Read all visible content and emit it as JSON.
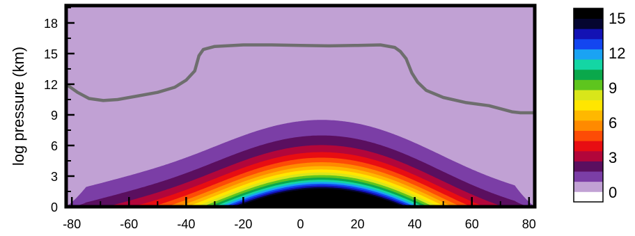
{
  "chart_data": {
    "type": "filled-contour",
    "ylabel": "log pressure (km)",
    "xlabel": "",
    "xlim": [
      -82,
      82
    ],
    "ylim": [
      0,
      19.7
    ],
    "x_ticks": [
      -80,
      -60,
      -40,
      -20,
      0,
      20,
      40,
      60,
      80
    ],
    "x_tick_labels": [
      "-80",
      "-60",
      "-40",
      "-20",
      "0",
      "20",
      "40",
      "60",
      "80"
    ],
    "y_ticks": [
      0,
      3,
      6,
      9,
      12,
      15,
      18
    ],
    "y_tick_labels": [
      "0",
      "3",
      "6",
      "9",
      "12",
      "15",
      "18"
    ],
    "contour_levels": [
      0,
      1,
      2,
      3,
      4,
      5,
      6,
      7,
      8,
      9,
      10,
      11,
      12,
      13,
      14,
      15
    ],
    "colorbar_tick_labels": [
      "15",
      "12",
      "9",
      "6",
      "3",
      "0"
    ],
    "colorbar_colors": [
      "#ffffff",
      "#c1a1d4",
      "#7b3ea6",
      "#5a0f5f",
      "#b2063a",
      "#e80d12",
      "#fd4c06",
      "#ff8a00",
      "#ffb800",
      "#ffe600",
      "#d9e61a",
      "#5ec51e",
      "#0aa84b",
      "#14d6a4",
      "#1aa3f3",
      "#1346f0",
      "#1312b4",
      "#050530",
      "#000000"
    ],
    "background_level": 0,
    "outline_curve": {
      "color": "#6e6e6e",
      "points": [
        [
          -82,
          12.0
        ],
        [
          -78,
          11.2
        ],
        [
          -74,
          10.6
        ],
        [
          -69,
          10.4
        ],
        [
          -64,
          10.5
        ],
        [
          -58,
          10.8
        ],
        [
          -50,
          11.2
        ],
        [
          -44,
          11.7
        ],
        [
          -40,
          12.4
        ],
        [
          -37,
          13.3
        ],
        [
          -35.5,
          14.8
        ],
        [
          -34,
          15.4
        ],
        [
          -30,
          15.7
        ],
        [
          -20,
          15.85
        ],
        [
          -10,
          15.85
        ],
        [
          0,
          15.8
        ],
        [
          10,
          15.75
        ],
        [
          20,
          15.8
        ],
        [
          28,
          15.85
        ],
        [
          33,
          15.6
        ],
        [
          35,
          15.2
        ],
        [
          37,
          14.5
        ],
        [
          39,
          13.1
        ],
        [
          41,
          12.2
        ],
        [
          44,
          11.4
        ],
        [
          50,
          10.7
        ],
        [
          58,
          10.2
        ],
        [
          66,
          9.9
        ],
        [
          70,
          9.6
        ],
        [
          74,
          9.3
        ],
        [
          77,
          9.2
        ],
        [
          82,
          9.2
        ]
      ]
    },
    "peak_location_lat": 8
  }
}
